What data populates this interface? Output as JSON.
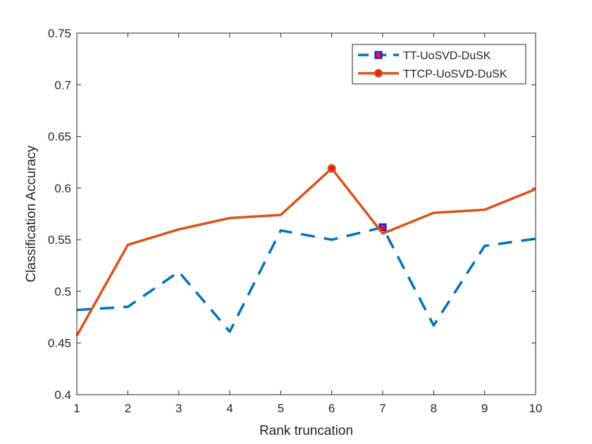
{
  "chart_data": {
    "type": "line",
    "xlabel": "Rank truncation",
    "ylabel": "Classification Accuracy",
    "xlim": [
      1,
      10
    ],
    "ylim": [
      0.4,
      0.75
    ],
    "x_ticks": [
      "1",
      "2",
      "3",
      "4",
      "5",
      "6",
      "7",
      "8",
      "9",
      "10"
    ],
    "y_ticks": [
      "0.4",
      "0.45",
      "0.5",
      "0.55",
      "0.6",
      "0.65",
      "0.7",
      "0.75"
    ],
    "x": [
      1,
      2,
      3,
      4,
      5,
      6,
      7,
      8,
      9,
      10
    ],
    "grid": false,
    "legend_position": "top-right",
    "series": [
      {
        "name": "TT-UoSVD-DuSK",
        "values": [
          0.482,
          0.485,
          0.519,
          0.461,
          0.559,
          0.55,
          0.562,
          0.467,
          0.544,
          0.551
        ],
        "color": "#0072BD",
        "line_style": "dashed",
        "marker": "square",
        "marker_at": [
          7
        ]
      },
      {
        "name": "TTCP-UoSVD-DuSK",
        "values": [
          0.457,
          0.545,
          0.56,
          0.571,
          0.574,
          0.619,
          0.556,
          0.576,
          0.579,
          0.599
        ],
        "color": "#D95319",
        "line_style": "solid",
        "marker": "circle",
        "marker_at": [
          6
        ]
      }
    ]
  }
}
